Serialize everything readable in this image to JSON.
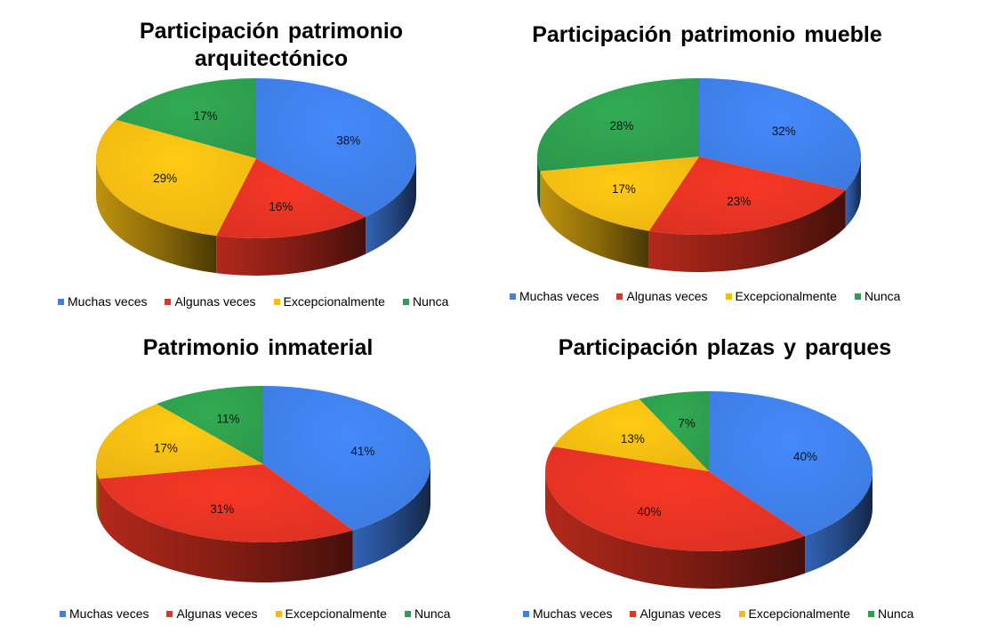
{
  "colors": {
    "Muchas veces": "#3F7FE8",
    "Algunas veces": "#E53323",
    "Excepcionalmente": "#F6BC12",
    "Nunca": "#2E9E4E"
  },
  "chart_data": [
    {
      "type": "pie",
      "title": "Participación patrimonio arquitectónico",
      "categories": [
        "Muchas veces",
        "Algunas veces",
        "Excepcionalmente",
        "Nunca"
      ],
      "values": [
        38,
        16,
        29,
        17
      ],
      "labels": [
        "38%",
        "16%",
        "29%",
        "17%"
      ],
      "legend_position": "bottom"
    },
    {
      "type": "pie",
      "title": "Participación patrimonio mueble",
      "categories": [
        "Muchas veces",
        "Algunas veces",
        "Excepcionalmente",
        "Nunca"
      ],
      "values": [
        32,
        23,
        17,
        28
      ],
      "labels": [
        "32%",
        "23%",
        "17%",
        "28%"
      ],
      "legend_position": "bottom"
    },
    {
      "type": "pie",
      "title": "Patrimonio inmaterial",
      "categories": [
        "Muchas veces",
        "Algunas veces",
        "Excepcionalmente",
        "Nunca"
      ],
      "values": [
        41,
        31,
        17,
        11
      ],
      "labels": [
        "41%",
        "31%",
        "17%",
        "11%"
      ],
      "legend_position": "bottom"
    },
    {
      "type": "pie",
      "title": "Participación plazas y parques",
      "categories": [
        "Muchas veces",
        "Algunas veces",
        "Excepcionalmente",
        "Nunca"
      ],
      "values": [
        40,
        40,
        13,
        7
      ],
      "labels": [
        "40%",
        "40%",
        "13%",
        "7%"
      ],
      "legend_position": "bottom"
    }
  ]
}
